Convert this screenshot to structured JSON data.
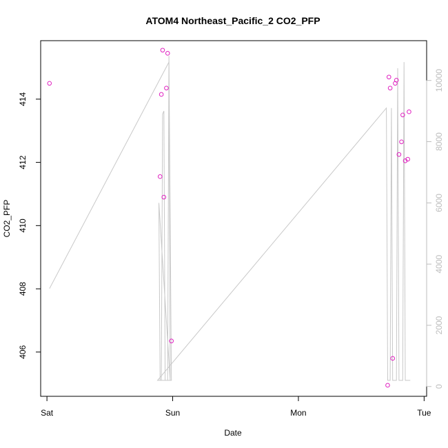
{
  "chart_data": {
    "type": "scatter",
    "title": "ATOM4 Northeast_Pacific_2 CO2_PFP",
    "xlabel": "Date",
    "ylabel": "CO2_PFP",
    "x_ticks": [
      "Sat",
      "Sun",
      "Mon",
      "Tue"
    ],
    "x_range_days": [
      -0.05,
      3.02
    ],
    "ylim": [
      404.6,
      415.85
    ],
    "y_ticks": [
      406,
      408,
      410,
      412,
      414
    ],
    "y2lim": [
      -320,
      11300
    ],
    "y2_ticks": [
      0,
      2000,
      4000,
      6000,
      8000,
      10000
    ],
    "colors": {
      "points": "#e020c0",
      "line": "#c8c8c8",
      "right_axis": "#bdbdbd"
    },
    "series": [
      {
        "type": "scatter",
        "y_axis": "left",
        "x_days": [
          0.02,
          0.9,
          0.91,
          0.92,
          0.93,
          0.95,
          0.96,
          0.99,
          2.71,
          2.72,
          2.73,
          2.75,
          2.77,
          2.78,
          2.8,
          2.82,
          2.83,
          2.85,
          2.87,
          2.88
        ],
        "values": [
          414.5,
          411.55,
          414.15,
          415.55,
          410.9,
          414.35,
          415.45,
          406.35,
          404.95,
          414.7,
          414.35,
          405.8,
          414.5,
          414.6,
          412.25,
          412.65,
          413.5,
          412.05,
          412.1,
          413.6
        ]
      },
      {
        "type": "line",
        "y_axis": "right",
        "x_days": [
          0.02,
          0.97,
          0.98,
          0.89,
          0.9,
          0.91,
          0.92,
          0.93,
          0.94,
          0.95,
          0.96,
          0.97,
          0.99,
          0.88,
          2.7,
          2.71,
          2.72,
          2.73,
          2.74,
          2.75,
          2.76,
          2.77,
          2.78,
          2.79,
          2.8,
          2.81,
          2.82,
          2.83,
          2.84,
          2.85,
          2.86,
          2.87,
          2.88,
          2.89
        ],
        "values": [
          3200,
          10600,
          200,
          6000,
          200,
          200,
          8900,
          9000,
          200,
          200,
          200,
          10800,
          200,
          200,
          9100,
          200,
          200,
          200,
          9100,
          200,
          200,
          200,
          200,
          10400,
          200,
          200,
          200,
          200,
          10600,
          200,
          200,
          200,
          200,
          200
        ]
      }
    ]
  }
}
